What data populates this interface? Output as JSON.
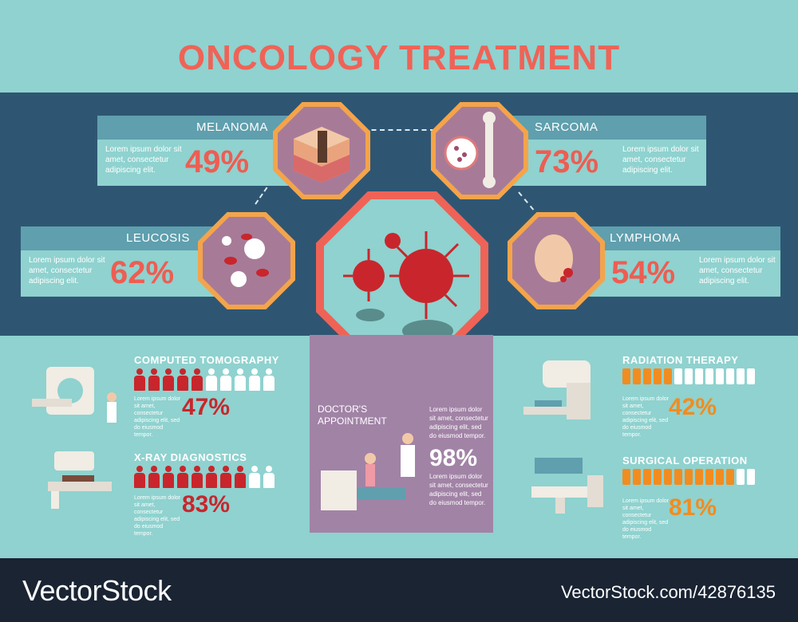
{
  "title": "ONCOLOGY TREATMENT",
  "cancers": {
    "melanoma": {
      "name": "MELANOMA",
      "text": "Lorem ipsum dolor sit amet, consectetur adipiscing elit.",
      "percent": "49%"
    },
    "sarcoma": {
      "name": "SARCOMA",
      "text": "Lorem ipsum dolor sit amet, consectetur adipiscing elit.",
      "percent": "73%"
    },
    "leucosis": {
      "name": "LEUCOSIS",
      "text": "Lorem ipsum dolor sit amet, consectetur adipiscing elit.",
      "percent": "62%"
    },
    "lymphoma": {
      "name": "LYMPHOMA",
      "text": "Lorem ipsum dolor sit amet, consectetur adipiscing elit.",
      "percent": "54%"
    }
  },
  "diagnostics": {
    "ct": {
      "name": "COMPUTED TOMOGRAPHY",
      "text": "Lorem ipsum dolor sit amet, consectetur adipiscing elit, sed do eiusmod tempor.",
      "percent": "47%",
      "level": 0.47,
      "icons_total": 10
    },
    "xray": {
      "name": "X-RAY DIAGNOSTICS",
      "text": "Lorem ipsum dolor sit amet, consectetur adipiscing elit, sed do eiusmod tempor.",
      "percent": "83%",
      "level": 0.83,
      "icons_total": 10
    }
  },
  "appointment": {
    "name": "DOCTOR'S APPOINTMENT",
    "text1": "Lorem ipsum dolor sit amet, consectetur adipiscing elit, sed do eiusmod tempor.",
    "percent": "98%",
    "text2": "Lorem ipsum dolor sit amet, consectetur adipiscing elit, sed do eiusmod tempor."
  },
  "therapies": {
    "radiation": {
      "name": "RADIATION THERAPY",
      "text": "Lorem ipsum dolor sit amet, consectetur adipiscing elit, sed do eiusmod tempor.",
      "percent": "42%",
      "level": 0.42,
      "bars_total": 13
    },
    "surgery": {
      "name": "SURGICAL OPERATION",
      "text": "Lorem ipsum dolor sit amet, consectetur adipiscing elit, sed do eiusmod tempor.",
      "percent": "81%",
      "level": 0.81,
      "bars_total": 13
    }
  },
  "colors": {
    "accent": "#ef6357",
    "diagnostic": "#c8262c",
    "therapy": "#f28c1f",
    "band": "#2e5673",
    "panel": "#a183a6"
  },
  "footer": {
    "brand": "VectorStock",
    "id": "VectorStock.com/42876135"
  }
}
